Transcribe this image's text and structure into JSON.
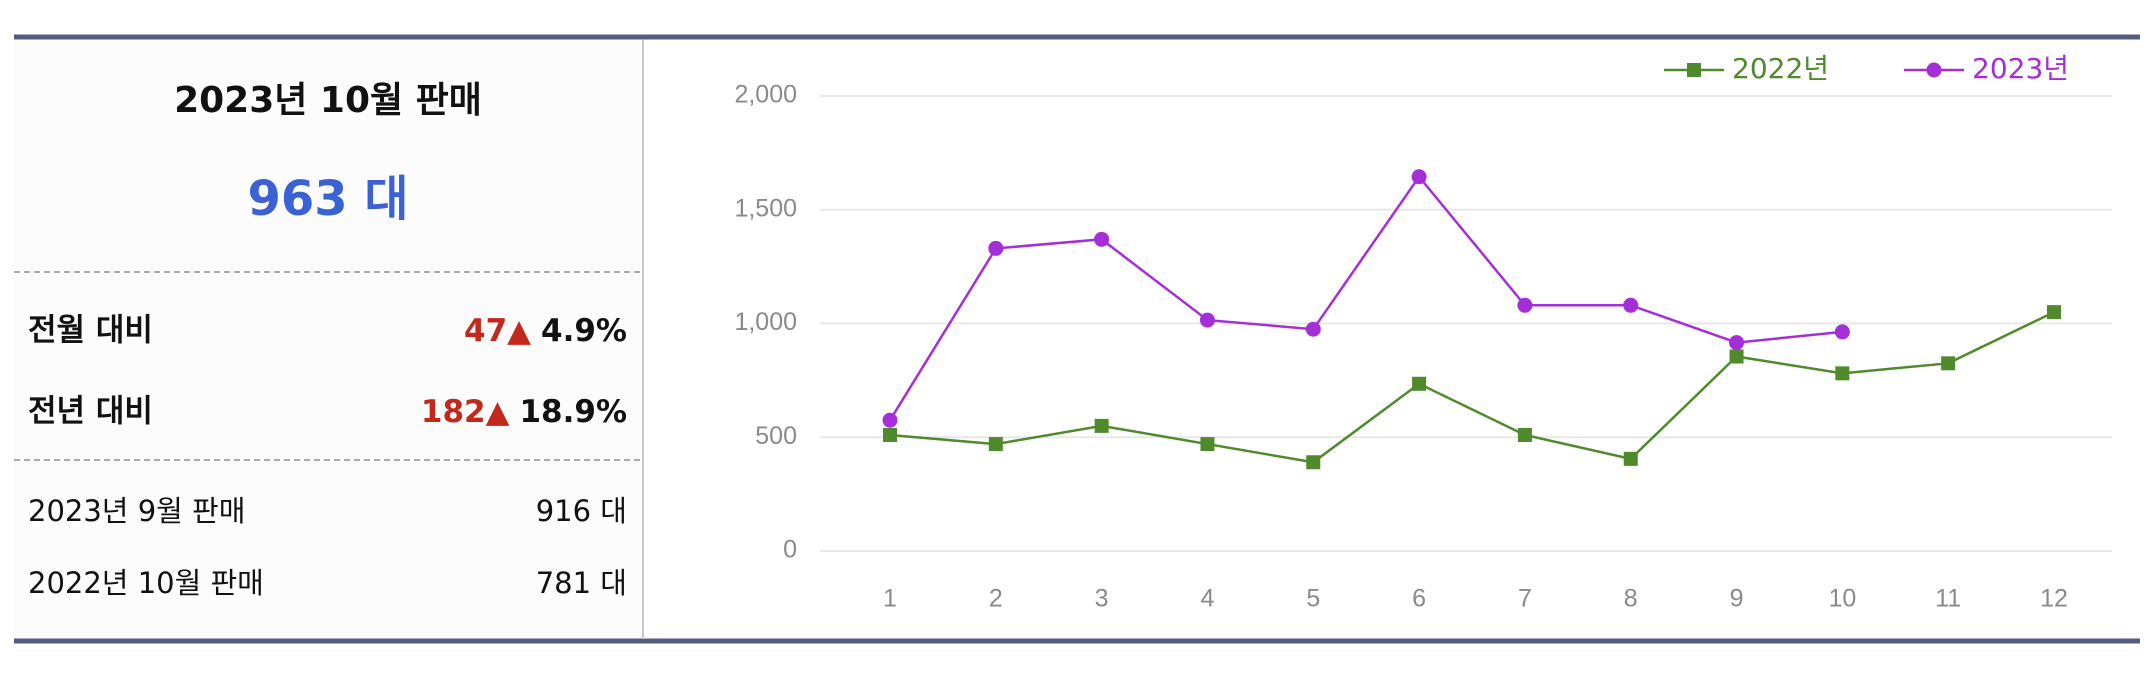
{
  "summary": {
    "title": "2023년 10월 판매",
    "total": "963 대"
  },
  "comparisons": [
    {
      "label": "전월 대비",
      "change": "47▲",
      "rate": "4.9%"
    },
    {
      "label": "전년 대비",
      "change": "182▲",
      "rate": "18.9%"
    }
  ],
  "details": [
    {
      "label": "2023년 9월 판매",
      "value": "916 대"
    },
    {
      "label": "2022년 10월 판매",
      "value": "781 대"
    }
  ],
  "chart_data": {
    "type": "line",
    "categories": [
      "1",
      "2",
      "3",
      "4",
      "5",
      "6",
      "7",
      "8",
      "9",
      "10",
      "11",
      "12"
    ],
    "series": [
      {
        "name": "2022년",
        "color": "#4f8a2b",
        "marker": "square",
        "values": [
          510,
          470,
          550,
          470,
          390,
          735,
          510,
          405,
          855,
          781,
          825,
          1050
        ]
      },
      {
        "name": "2023년",
        "color": "#a52fd6",
        "marker": "circle",
        "values": [
          575,
          1330,
          1370,
          1015,
          975,
          1645,
          1080,
          1080,
          916,
          963,
          null,
          null
        ]
      }
    ],
    "ylim": [
      0,
      2000
    ],
    "yticks": [
      0,
      500,
      {
        "value": 1000,
        "label": "1,000"
      },
      {
        "value": 1500,
        "label": "1,500"
      },
      {
        "value": 2000,
        "label": "2,000"
      }
    ],
    "grid": true,
    "legend": "top-right"
  }
}
